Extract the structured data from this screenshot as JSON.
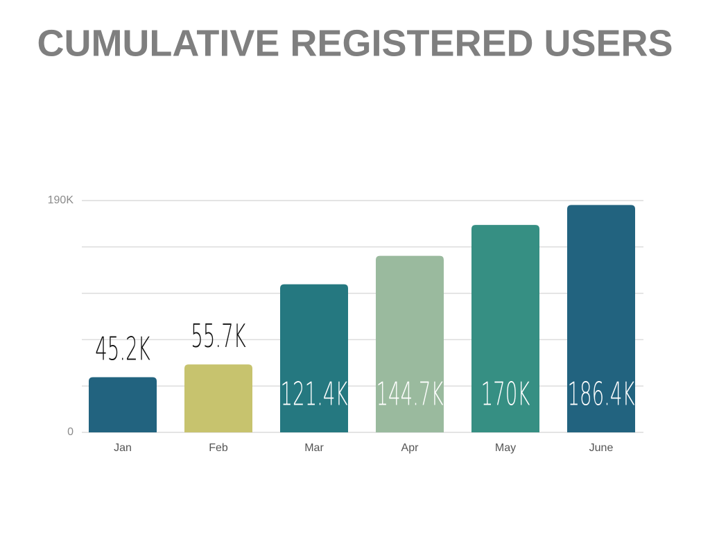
{
  "chart_data": {
    "type": "bar",
    "title": "CUMULATIVE REGISTERED USERS",
    "categories": [
      "Jan",
      "Feb",
      "Mar",
      "Apr",
      "May",
      "June"
    ],
    "values": [
      45200,
      55700,
      121400,
      144700,
      170000,
      186400
    ],
    "value_labels": [
      "45.2K",
      "55.7K",
      "121.4K",
      "144.7K",
      "170K",
      "186.4K"
    ],
    "colors": [
      "#22637f",
      "#c7c36e",
      "#257880",
      "#9aba9e",
      "#368f83",
      "#22637f"
    ],
    "ylim": [
      0,
      190000
    ],
    "yticks": [
      0,
      {
        "value": 190000,
        "label": "190K"
      }
    ],
    "gridlines": [
      0,
      38000,
      76000,
      114000,
      152000,
      190000
    ],
    "grid": true
  }
}
